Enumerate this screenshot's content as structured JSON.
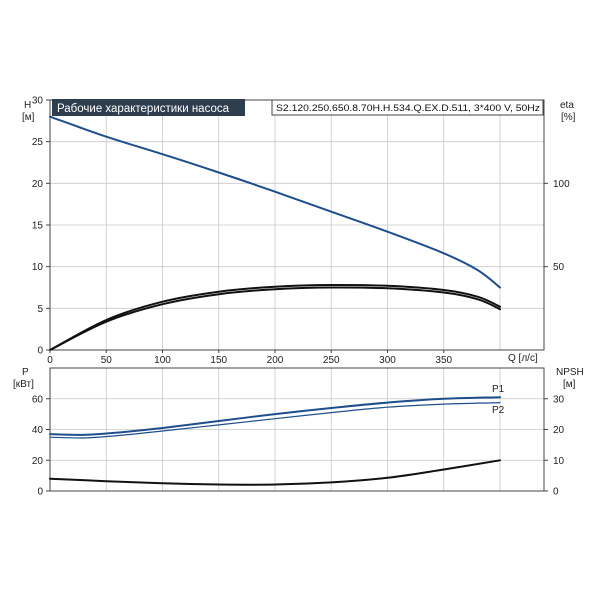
{
  "title": "Рабочие характеристики насоса",
  "model": "S2.120.250.650.8.70H.H.534.Q.EX.D.511, 3*400 V, 50Hz",
  "colors": {
    "blue": "#1f4e8c",
    "black": "#111111",
    "title_bg": "#2f3e4f",
    "grid": "#c8c8c8"
  },
  "chart_data": [
    {
      "type": "line",
      "name": "top",
      "xlabel": "Q [л/с]",
      "y_left_label": [
        "H",
        "[м]"
      ],
      "y_right_label": [
        "eta",
        "[%]"
      ],
      "xlim": [
        0,
        400
      ],
      "ylim": [
        0,
        30
      ],
      "y2lim": [
        0,
        150
      ],
      "x_ticks": [
        "0",
        "50",
        "100",
        "150",
        "200",
        "250",
        "300",
        "350"
      ],
      "y_ticks": [
        "0",
        "5",
        "10",
        "15",
        "20",
        "25",
        "30"
      ],
      "y2_ticks": [
        "50",
        "100"
      ],
      "grid": true,
      "series": [
        {
          "axis": "left",
          "color": "blue",
          "x": [
            0,
            50,
            100,
            150,
            200,
            250,
            300,
            350,
            380,
            400
          ],
          "y": [
            28,
            25.6,
            23.5,
            21.3,
            19.0,
            16.6,
            14.2,
            11.6,
            9.6,
            7.5
          ]
        },
        {
          "axis": "right",
          "color": "black",
          "x": [
            0,
            50,
            100,
            150,
            200,
            250,
            300,
            350,
            380,
            400
          ],
          "y": [
            0,
            18,
            29,
            35,
            38,
            39,
            38.5,
            36,
            32,
            26
          ]
        },
        {
          "axis": "right",
          "color": "black",
          "x": [
            0,
            50,
            100,
            150,
            200,
            250,
            300,
            350,
            380,
            400
          ],
          "y": [
            0,
            17,
            27.5,
            33.5,
            36.5,
            37.5,
            37,
            34.5,
            30.5,
            24.5
          ]
        }
      ]
    },
    {
      "type": "line",
      "name": "bottom",
      "y_left_label": [
        "P",
        "[кВт]"
      ],
      "y_right_label": [
        "NPSH",
        "[м]"
      ],
      "xlim": [
        0,
        400
      ],
      "ylim": [
        0,
        80
      ],
      "y2lim": [
        0,
        40
      ],
      "y_ticks": [
        "0",
        "20",
        "40",
        "60"
      ],
      "y2_ticks": [
        "0",
        "10",
        "20",
        "30"
      ],
      "grid": true,
      "series": [
        {
          "name": "P1",
          "axis": "left",
          "color": "blue",
          "x": [
            0,
            30,
            60,
            100,
            150,
            200,
            250,
            300,
            350,
            400
          ],
          "y": [
            37,
            36.5,
            38,
            41,
            45.5,
            50,
            54,
            57.5,
            60,
            61
          ]
        },
        {
          "name": "P2",
          "axis": "left",
          "color": "blue",
          "x": [
            0,
            30,
            60,
            100,
            150,
            200,
            250,
            300,
            350,
            400
          ],
          "y": [
            35,
            34.5,
            36,
            39,
            43,
            47,
            51,
            54.5,
            56.5,
            57.5
          ]
        },
        {
          "axis": "right",
          "color": "black",
          "x": [
            0,
            50,
            100,
            150,
            200,
            250,
            300,
            350,
            400
          ],
          "y": [
            4,
            3.2,
            2.5,
            2.1,
            2.1,
            2.8,
            4.3,
            7,
            10
          ]
        }
      ]
    }
  ]
}
